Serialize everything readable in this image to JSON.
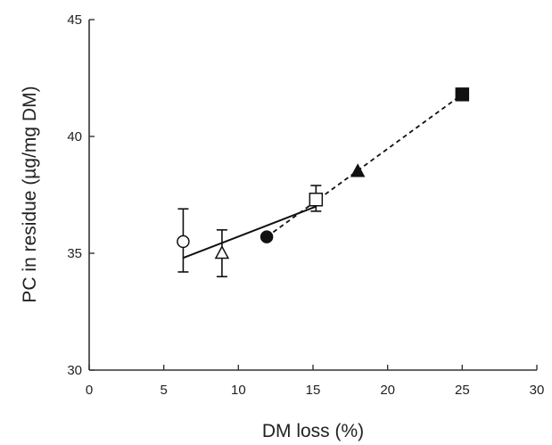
{
  "chart_data": {
    "type": "scatter",
    "title": "",
    "xlabel": "DM loss (%)",
    "ylabel": "PC in residue (µg/mg DM)",
    "xlim": [
      0,
      30
    ],
    "ylim": [
      30,
      45
    ],
    "xticks": [
      0,
      5,
      10,
      15,
      20,
      25,
      30
    ],
    "yticks": [
      30,
      35,
      40,
      45
    ],
    "grid": false,
    "points": [
      {
        "marker": "open-circle",
        "x": 6.3,
        "y": 35.5,
        "err_low": 34.2,
        "err_high": 36.9
      },
      {
        "marker": "open-triangle",
        "x": 8.9,
        "y": 35.0,
        "err_low": 34.0,
        "err_high": 36.0
      },
      {
        "marker": "filled-circle",
        "x": 11.9,
        "y": 35.7
      },
      {
        "marker": "open-square",
        "x": 15.2,
        "y": 37.3,
        "err_low": 36.8,
        "err_high": 37.9
      },
      {
        "marker": "filled-triangle",
        "x": 18.0,
        "y": 38.5
      },
      {
        "marker": "filled-square",
        "x": 25.0,
        "y": 41.8
      }
    ],
    "lines": [
      {
        "style": "solid",
        "x": [
          6.3,
          15.2
        ],
        "y": [
          34.8,
          37.0
        ]
      },
      {
        "style": "dashed",
        "x": [
          11.9,
          25.0
        ],
        "y": [
          35.7,
          41.8
        ]
      }
    ]
  }
}
